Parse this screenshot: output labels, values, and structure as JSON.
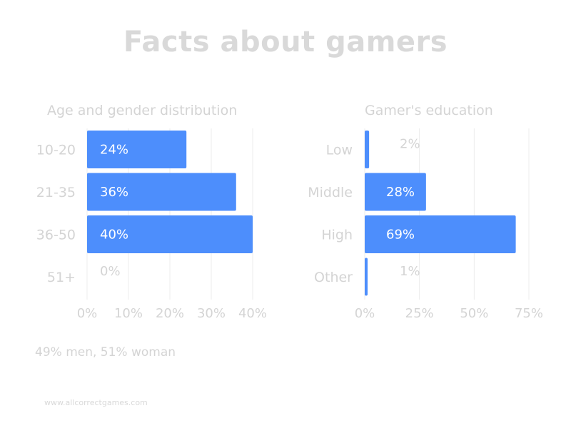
{
  "page": {
    "title": "Facts about gamers",
    "footnote": "49% men, 51% woman",
    "source": "www.allcorrectgames.com"
  },
  "colors": {
    "bar": "#4d8efc",
    "text_light": "#d4d4d4",
    "bar_label": "#ffffff",
    "grid": "#ececec"
  },
  "chart_data": [
    {
      "type": "bar",
      "orientation": "horizontal",
      "title": "Age and gender distribution",
      "categories": [
        "10-20",
        "21-35",
        "36-50",
        "51+"
      ],
      "values": [
        24,
        36,
        40,
        0
      ],
      "value_labels": [
        "24%",
        "36%",
        "40%",
        "0%"
      ],
      "xlim": [
        0,
        40
      ],
      "xticks": [
        0,
        10,
        20,
        30,
        40
      ],
      "xtick_labels": [
        "0%",
        "10%",
        "20%",
        "30%",
        "40%"
      ],
      "grid": true
    },
    {
      "type": "bar",
      "orientation": "horizontal",
      "title": "Gamer's education",
      "categories": [
        "Low",
        "Middle",
        "High",
        "Other"
      ],
      "values": [
        2,
        28,
        69,
        1
      ],
      "value_labels": [
        "2%",
        "28%",
        "69%",
        "1%"
      ],
      "xlim": [
        0,
        75
      ],
      "xticks": [
        0,
        25,
        50,
        75
      ],
      "xtick_labels": [
        "0%",
        "25%",
        "50%",
        "75%"
      ],
      "grid": true
    }
  ]
}
